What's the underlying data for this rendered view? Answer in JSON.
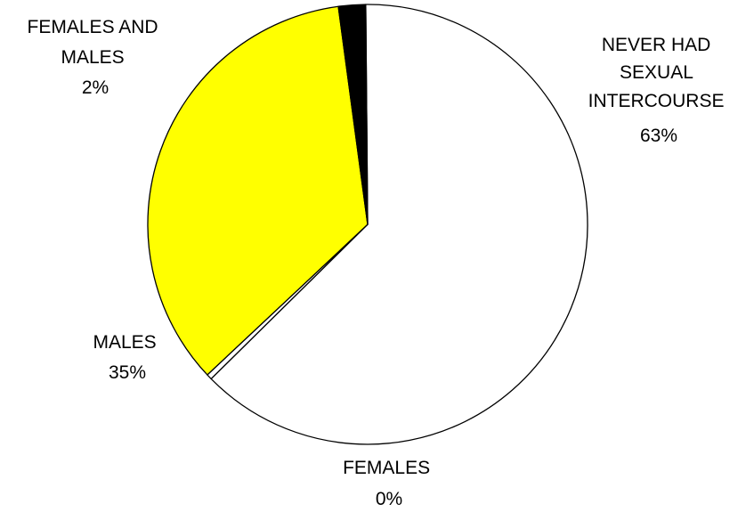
{
  "chart_data": {
    "type": "pie",
    "slices": [
      {
        "label_lines": [
          "NEVER HAD",
          "SEXUAL",
          "INTERCOURSE"
        ],
        "percent_text": "63%",
        "value": 63,
        "color": "#ffffff"
      },
      {
        "label_lines": [
          "FEMALES"
        ],
        "percent_text": "0%",
        "value": 0.4,
        "color": "#ffffff"
      },
      {
        "label_lines": [
          "MALES"
        ],
        "percent_text": "35%",
        "value": 35,
        "color": "#ffff00"
      },
      {
        "label_lines": [
          "FEMALES AND",
          "MALES"
        ],
        "percent_text": "2%",
        "value": 2,
        "color": "#000000"
      }
    ],
    "legend": "none"
  }
}
